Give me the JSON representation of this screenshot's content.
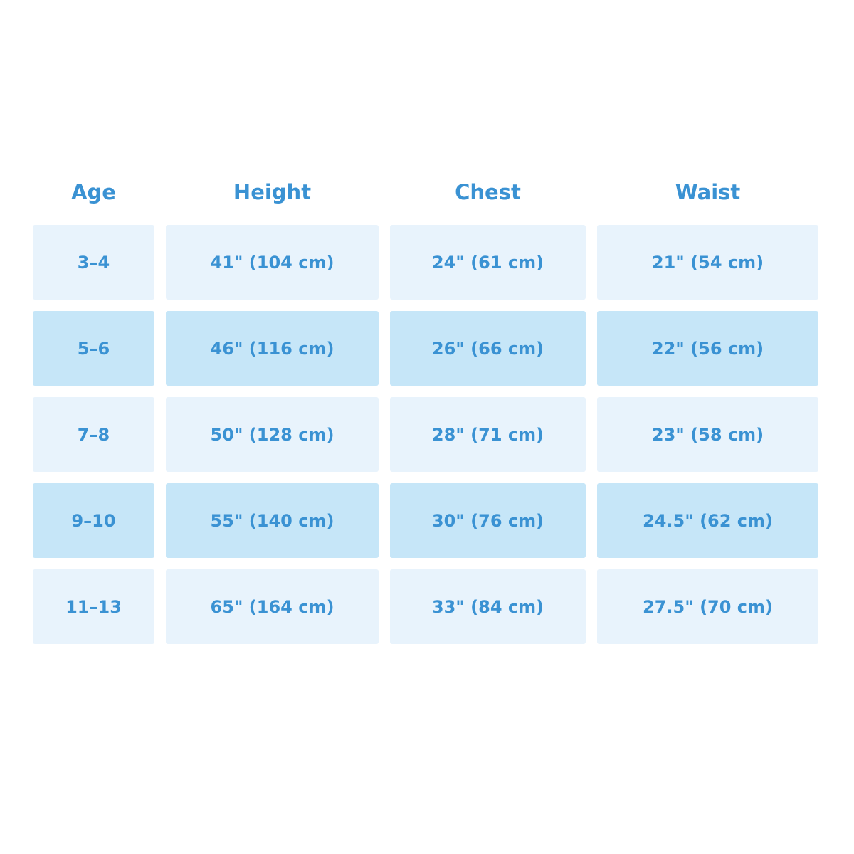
{
  "table": {
    "headers": [
      "Age",
      "Height",
      "Chest",
      "Waist"
    ],
    "rows": [
      [
        "3–4",
        "41\" (104 cm)",
        "24\" (61 cm)",
        "21\" (54 cm)"
      ],
      [
        "5–6",
        "46\" (116 cm)",
        "26\" (66 cm)",
        "22\" (56 cm)"
      ],
      [
        "7–8",
        "50\" (128 cm)",
        "28\" (71 cm)",
        "23\" (58 cm)"
      ],
      [
        "9–10",
        "55\" (140 cm)",
        "30\" (76 cm)",
        "24.5\" (62 cm)"
      ],
      [
        "11–13",
        "65\" (164 cm)",
        "33\" (84 cm)",
        "27.5\" (70 cm)"
      ]
    ]
  },
  "colors": {
    "text": "#3a92d3",
    "row_light": "#e8f3fc",
    "row_dark": "#c6e6f8"
  }
}
